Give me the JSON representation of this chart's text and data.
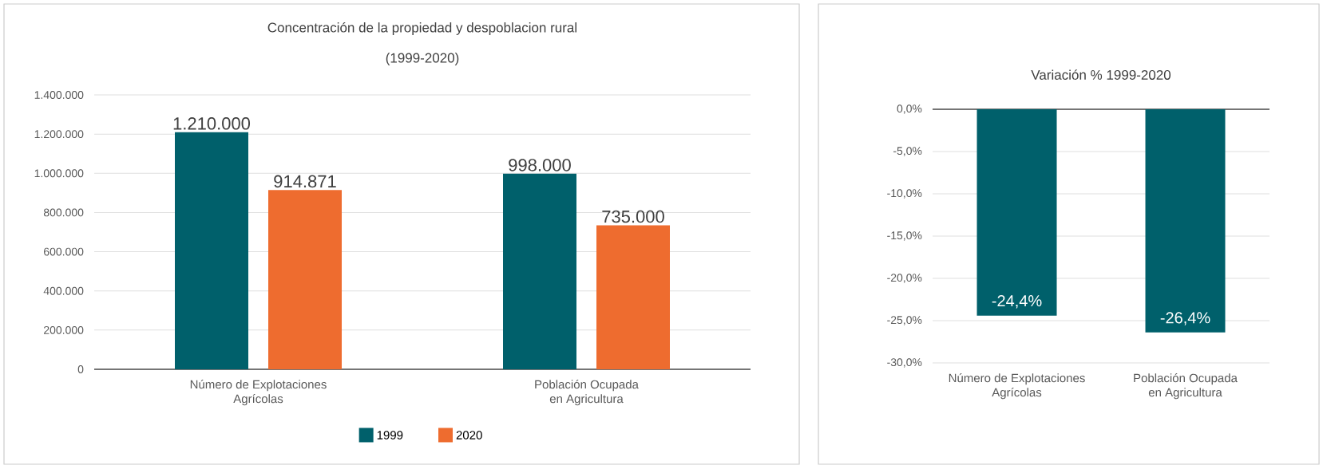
{
  "chart_data": [
    {
      "type": "bar",
      "title": "Concentración de la propiedad y despoblacion rural",
      "subtitle": "(1999-2020)",
      "categories": [
        "Número de Explotaciones Agrícolas",
        "Población Ocupada en Agricultura"
      ],
      "series": [
        {
          "name": "1999",
          "color": "#00606b",
          "values": [
            1210000,
            998000
          ],
          "value_labels": [
            "1.210.000",
            "998.000"
          ]
        },
        {
          "name": "2020",
          "color": "#ee6c2f",
          "values": [
            914871,
            735000
          ],
          "value_labels": [
            "914.871",
            "735.000"
          ]
        }
      ],
      "ylim": [
        0,
        1400000
      ],
      "yticks": [
        {
          "value": 0,
          "label": "0"
        },
        {
          "value": 200000,
          "label": "200.000"
        },
        {
          "value": 400000,
          "label": "400.000"
        },
        {
          "value": 600000,
          "label": "600.000"
        },
        {
          "value": 800000,
          "label": "800.000"
        },
        {
          "value": 1000000,
          "label": "1.000.000"
        },
        {
          "value": 1200000,
          "label": "1.200.000"
        },
        {
          "value": 1400000,
          "label": "1.400.000"
        }
      ],
      "grid": "y",
      "legend": "bottom"
    },
    {
      "type": "bar",
      "title": "Variación % 1999-2020",
      "categories": [
        "Número de Explotaciones Agrícolas",
        "Población Ocupada en Agricultura"
      ],
      "series": [
        {
          "color": "#00606b",
          "values": [
            -24.4,
            -26.4
          ],
          "value_labels": [
            "-24,4%",
            "-26,4%"
          ]
        }
      ],
      "ylim": [
        -30,
        0
      ],
      "yticks": [
        {
          "value": -30,
          "label": "-30,0%"
        },
        {
          "value": -25,
          "label": "-25,0%"
        },
        {
          "value": -20,
          "label": "-20,0%"
        },
        {
          "value": -15,
          "label": "-15,0%"
        },
        {
          "value": -10,
          "label": "-10,0%"
        },
        {
          "value": -5,
          "label": "-5,0%"
        },
        {
          "value": 0,
          "label": "0,0%"
        }
      ],
      "grid": "y"
    }
  ]
}
